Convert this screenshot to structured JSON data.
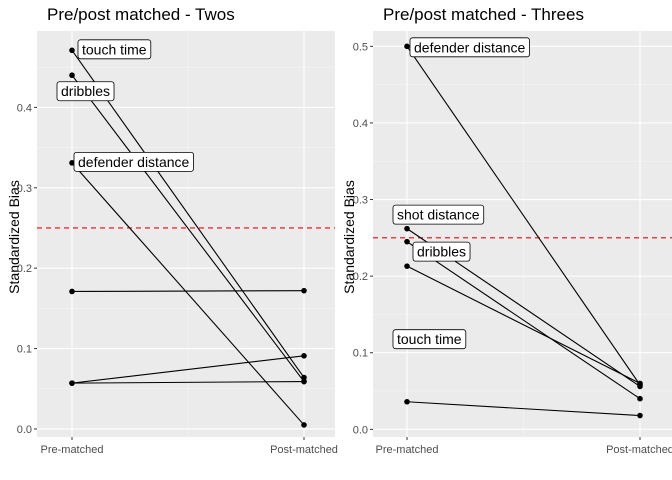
{
  "chart_data": [
    {
      "type": "line",
      "title": "Pre/post matched - Twos",
      "xlabel": "",
      "ylabel": "Standardized Bias",
      "categories": [
        "Pre-matched",
        "Post-matched"
      ],
      "ylim": [
        -0.01,
        0.495
      ],
      "yticks": [
        0.0,
        0.1,
        0.2,
        0.3,
        0.4
      ],
      "ytick_labels": [
        "0.0",
        "0.1",
        "0.2",
        "0.3",
        "0.4"
      ],
      "threshold": 0.25,
      "grid": true,
      "series": [
        {
          "name": "touch time",
          "values": [
            0.471,
            0.064
          ],
          "labeled": true
        },
        {
          "name": "dribbles",
          "values": [
            0.44,
            0.059
          ],
          "labeled": true
        },
        {
          "name": "defender distance",
          "values": [
            0.331,
            0.005
          ],
          "labeled": true
        },
        {
          "name": "",
          "values": [
            0.171,
            0.172
          ],
          "labeled": false
        },
        {
          "name": "",
          "values": [
            0.057,
            0.091
          ],
          "labeled": false
        },
        {
          "name": "",
          "values": [
            0.057,
            0.059
          ],
          "labeled": false
        }
      ]
    },
    {
      "type": "line",
      "title": "Pre/post matched - Threes",
      "xlabel": "",
      "ylabel": "Standardized Bias",
      "categories": [
        "Pre-matched",
        "Post-matched"
      ],
      "ylim": [
        -0.01,
        0.52
      ],
      "yticks": [
        0.0,
        0.1,
        0.2,
        0.3,
        0.4,
        0.5
      ],
      "ytick_labels": [
        "0.0",
        "0.1",
        "0.2",
        "0.3",
        "0.4",
        "0.5"
      ],
      "threshold": 0.25,
      "grid": true,
      "series": [
        {
          "name": "defender distance",
          "values": [
            0.5,
            0.058
          ],
          "labeled": true
        },
        {
          "name": "shot distance",
          "values": [
            0.262,
            0.056
          ],
          "labeled": true
        },
        {
          "name": "dribbles",
          "values": [
            0.245,
            0.04
          ],
          "labeled": true
        },
        {
          "name": "touch time",
          "values": [
            0.213,
            0.06
          ],
          "labeled": true
        },
        {
          "name": "",
          "values": [
            0.036,
            0.018
          ],
          "labeled": false
        }
      ]
    }
  ]
}
